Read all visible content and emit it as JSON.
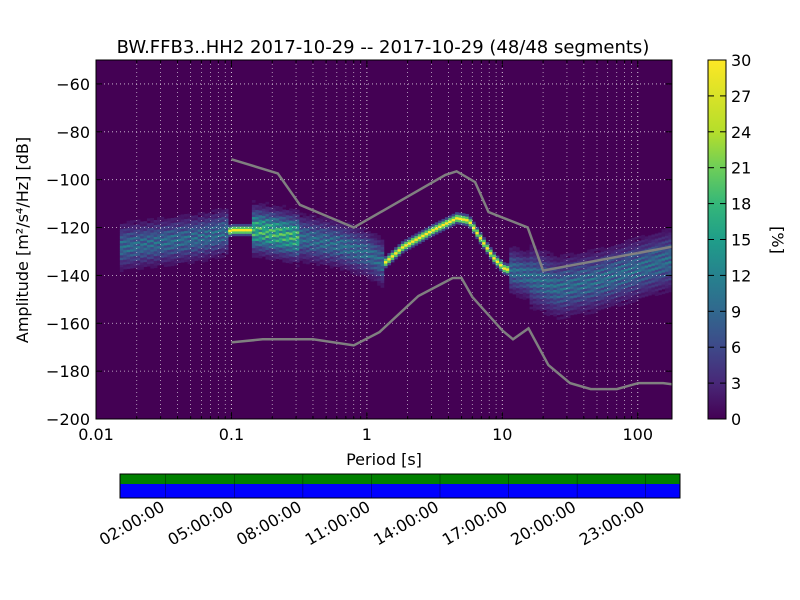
{
  "chart_data": {
    "type": "heatmap",
    "title": "BW.FFB3..HH2   2017-10-29 -- 2017-10-29  (48/48 segments)",
    "xlabel": "Period [s]",
    "ylabel": "Amplitude [m²/s⁴/Hz] [dB]",
    "x_scale": "log",
    "xlim": [
      0.01,
      179
    ],
    "ylim": [
      -200,
      -50
    ],
    "x_ticks": [
      0.01,
      0.1,
      1,
      10,
      100
    ],
    "x_tick_labels": [
      "0.01",
      "0.1",
      "1",
      "10",
      "100"
    ],
    "y_ticks": [
      -60,
      -80,
      -100,
      -120,
      -140,
      -160,
      -180,
      -200
    ],
    "y_tick_labels": [
      "−60",
      "−80",
      "−100",
      "−120",
      "−140",
      "−160",
      "−180",
      "−200"
    ],
    "colorbar": {
      "label": "[%]",
      "range": [
        0,
        30
      ],
      "ticks": [
        0,
        3,
        6,
        9,
        12,
        15,
        18,
        21,
        24,
        27,
        30
      ],
      "tick_labels": [
        "0",
        "3",
        "6",
        "9",
        "12",
        "15",
        "18",
        "21",
        "24",
        "27",
        "30"
      ],
      "colormap": "viridis"
    },
    "mode_curve": [
      {
        "period": 0.015,
        "db": -128
      },
      {
        "period": 0.03,
        "db": -126
      },
      {
        "period": 0.06,
        "db": -124
      },
      {
        "period": 0.1,
        "db": -121
      },
      {
        "period": 0.15,
        "db": -121
      },
      {
        "period": 0.3,
        "db": -124
      },
      {
        "period": 0.6,
        "db": -127
      },
      {
        "period": 1.0,
        "db": -131
      },
      {
        "period": 1.3,
        "db": -135
      },
      {
        "period": 1.8,
        "db": -128
      },
      {
        "period": 3.0,
        "db": -121
      },
      {
        "period": 4.5,
        "db": -116
      },
      {
        "period": 5.5,
        "db": -117
      },
      {
        "period": 7.0,
        "db": -126
      },
      {
        "period": 8.5,
        "db": -133
      },
      {
        "period": 10,
        "db": -137
      },
      {
        "period": 15,
        "db": -140
      },
      {
        "period": 25,
        "db": -145
      },
      {
        "period": 50,
        "db": -142
      },
      {
        "period": 100,
        "db": -137
      },
      {
        "period": 179,
        "db": -133
      }
    ],
    "band_spread_db": 5,
    "noise_models": {
      "new_high_noise_model": [
        {
          "period": 0.1,
          "db": -91.5
        },
        {
          "period": 0.22,
          "db": -97.4
        },
        {
          "period": 0.32,
          "db": -110.5
        },
        {
          "period": 0.8,
          "db": -120
        },
        {
          "period": 3.8,
          "db": -98
        },
        {
          "period": 4.6,
          "db": -96.5
        },
        {
          "period": 6.3,
          "db": -101
        },
        {
          "period": 7.9,
          "db": -113.5
        },
        {
          "period": 15.4,
          "db": -120
        },
        {
          "period": 20,
          "db": -138
        },
        {
          "period": 179,
          "db": -128
        }
      ],
      "new_low_noise_model": [
        {
          "period": 0.1,
          "db": -168
        },
        {
          "period": 0.17,
          "db": -166.7
        },
        {
          "period": 0.4,
          "db": -166.7
        },
        {
          "period": 0.8,
          "db": -169.2
        },
        {
          "period": 1.24,
          "db": -163.7
        },
        {
          "period": 2.4,
          "db": -148.6
        },
        {
          "period": 4.3,
          "db": -141.1
        },
        {
          "period": 5.0,
          "db": -141.1
        },
        {
          "period": 6.0,
          "db": -149
        },
        {
          "period": 10,
          "db": -163
        },
        {
          "period": 12,
          "db": -166.7
        },
        {
          "period": 15.6,
          "db": -162.1
        },
        {
          "period": 21.9,
          "db": -177.5
        },
        {
          "period": 31.6,
          "db": -185
        },
        {
          "period": 45,
          "db": -187.5
        },
        {
          "period": 70,
          "db": -187.5
        },
        {
          "period": 101,
          "db": -185
        },
        {
          "period": 154,
          "db": -185
        },
        {
          "period": 179,
          "db": -185.5
        }
      ]
    },
    "coverage": {
      "time_labels": [
        "02:00:00",
        "05:00:00",
        "08:00:00",
        "11:00:00",
        "14:00:00",
        "17:00:00",
        "20:00:00",
        "23:00:00"
      ],
      "data_color": "#008000",
      "used_color": "#0000ff"
    }
  },
  "colors": {
    "background": "#440154",
    "noise_model": "#808080",
    "grid": "#ffffff"
  }
}
